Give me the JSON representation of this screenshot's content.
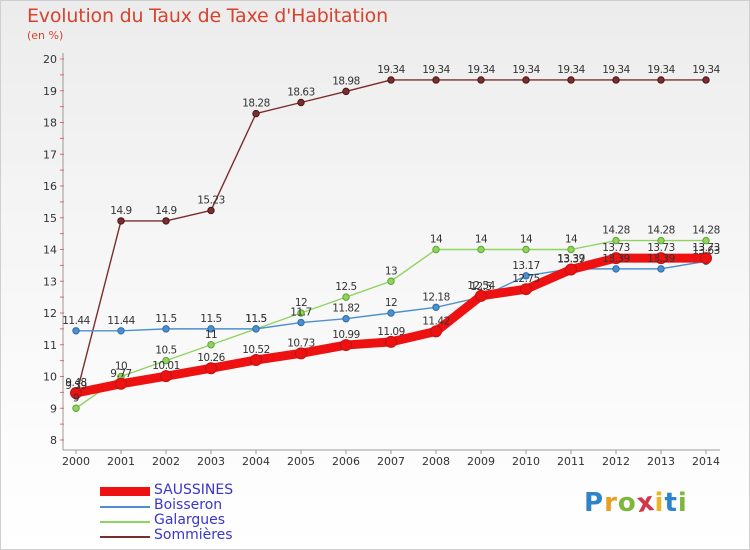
{
  "header": {
    "title": "Evolution du Taux de Taxe d'Habitation",
    "subtitle": "(en %)"
  },
  "brand": {
    "text": "Proxiti",
    "letters": [
      "P",
      "r",
      "o",
      "x",
      "i",
      "t",
      "i"
    ],
    "colors": [
      "#2e84c6",
      "#e7a020",
      "#7fb73d",
      "#d0384a",
      "#f0b320",
      "#2e84c6",
      "#7fb73d"
    ]
  },
  "chart_data": {
    "type": "line",
    "title": "Evolution du Taux de Taxe d'Habitation",
    "ylabel": "(en %)",
    "xlabel": "",
    "x": [
      "2000",
      "2001",
      "2002",
      "2003",
      "2004",
      "2005",
      "2006",
      "2007",
      "2008",
      "2009",
      "2010",
      "2011",
      "2012",
      "2013",
      "2014"
    ],
    "ylim": [
      8,
      20
    ],
    "yticks": [
      "8",
      "9",
      "10",
      "11",
      "12",
      "13",
      "14",
      "15",
      "16",
      "17",
      "18",
      "19",
      "20"
    ],
    "grid": false,
    "legend_position": "bottom-left",
    "series": [
      {
        "name": "SAUSSINES",
        "color": "#ee1111",
        "values": [
          9.48,
          9.77,
          10.01,
          10.26,
          10.52,
          10.73,
          10.99,
          11.09,
          11.42,
          12.54,
          12.75,
          13.37,
          13.73,
          13.73,
          13.73
        ],
        "labels": [
          "9.48",
          "9.77",
          "10.01",
          "10.26",
          "10.52",
          "10.73",
          "10.99",
          "11.09",
          "11.42",
          "12.54",
          "12.75",
          "13.37",
          "13.73",
          "13.73",
          "13.73"
        ]
      },
      {
        "name": "Boisseron",
        "color": "#4d8fcf",
        "values": [
          11.44,
          11.44,
          11.5,
          11.5,
          11.5,
          11.7,
          11.82,
          12,
          12.18,
          12.5,
          13.17,
          13.39,
          13.39,
          13.39,
          13.63
        ],
        "labels": [
          "11.44",
          "11.44",
          "11.5",
          "11.5",
          "11.5",
          "11.7",
          "11.82",
          "12",
          "12.18",
          "12.5",
          "13.17",
          "13.39",
          "13.39",
          "13.39",
          "13.63"
        ]
      },
      {
        "name": "Galargues",
        "color": "#8fd460",
        "values": [
          9,
          10,
          10.5,
          11,
          11.5,
          12,
          12.5,
          13,
          14,
          14,
          14,
          14,
          14.28,
          14.28,
          14.28
        ],
        "labels": [
          "9",
          "10",
          "10.5",
          "11",
          "11.5",
          "12",
          "12.5",
          "13",
          "14",
          "14",
          "14",
          "14",
          "14.28",
          "14.28",
          "14.28"
        ]
      },
      {
        "name": "Sommières",
        "color": "#7a2e2e",
        "values": [
          9.39,
          14.9,
          14.9,
          15.23,
          18.28,
          18.63,
          18.98,
          19.34,
          19.34,
          19.34,
          19.34,
          19.34,
          19.34,
          19.34,
          19.34
        ],
        "labels": [
          "9.39",
          "14.9",
          "14.9",
          "15.23",
          "18.28",
          "18.63",
          "18.98",
          "19.34",
          "19.34",
          "19.34",
          "19.34",
          "19.34",
          "19.34",
          "19.34",
          "19.34"
        ]
      }
    ]
  }
}
